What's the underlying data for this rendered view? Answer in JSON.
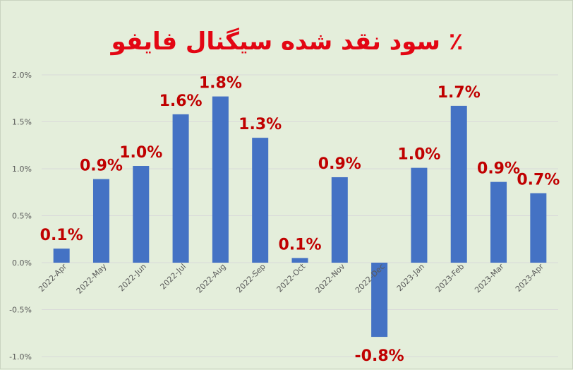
{
  "chart_data": {
    "type": "bar",
    "title": "٪ سود نقد شده سیگنال فایفو",
    "xlabel": "",
    "ylabel": "",
    "categories": [
      "2022-Apr",
      "2022-May",
      "2022-Jun",
      "2022-Jul",
      "2022-Aug",
      "2022-Sep",
      "2022-Oct",
      "2022-Nov",
      "2022-Dec",
      "2023-Jan",
      "2023-Feb",
      "2023-Mar",
      "2023-Apr"
    ],
    "values": [
      0.0015,
      0.0089,
      0.0103,
      0.0158,
      0.0177,
      0.0133,
      0.0005,
      0.0091,
      -0.0079,
      0.0101,
      0.0167,
      0.0086,
      0.0074
    ],
    "data_labels": [
      "0.1%",
      "0.9%",
      "1.0%",
      "1.6%",
      "1.8%",
      "1.3%",
      "0.1%",
      "0.9%",
      "-0.8%",
      "1.0%",
      "1.7%",
      "0.9%",
      "0.7%"
    ],
    "y_ticks": [
      0.02,
      0.015,
      0.01,
      0.005,
      0.0,
      -0.005,
      -0.01
    ],
    "y_tick_labels": [
      "2.0%",
      "1.5%",
      "1.0%",
      "0.5%",
      "0.0%",
      "-0.5%",
      "-1.0%"
    ],
    "ylim": [
      -0.01,
      0.02
    ],
    "grid": true,
    "legend": "none",
    "colors": {
      "bar": "#4472c4",
      "data_label": "#c00000",
      "title": "#e30613",
      "grid": "#d9d9d9",
      "axis_text": "#595959",
      "background": "#e4eedb"
    }
  }
}
